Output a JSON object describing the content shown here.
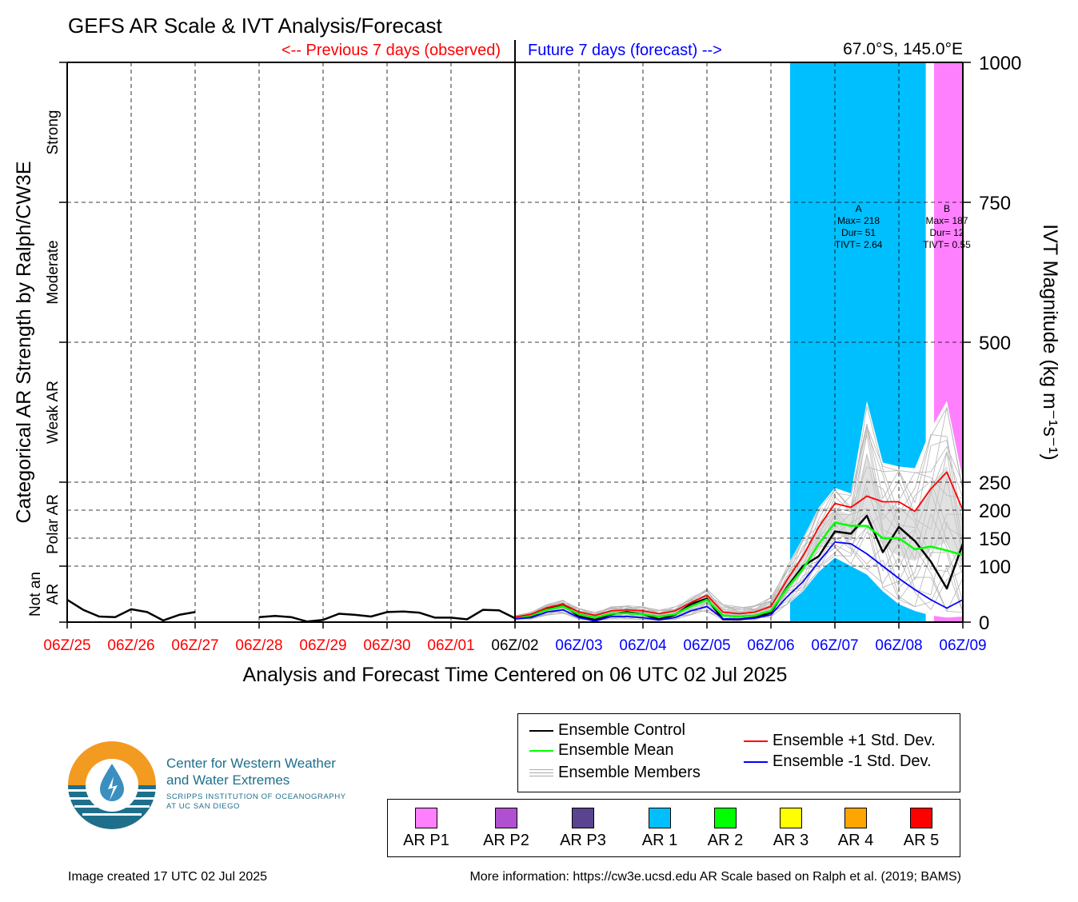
{
  "title": "GEFS AR Scale & IVT Analysis/Forecast",
  "header": {
    "previous": "<-- Previous 7 days (observed)",
    "future": "Future 7 days (forecast) -->",
    "location": "67.0°S, 145.0°E"
  },
  "xlabel": "Analysis and Forecast Time Centered on 06 UTC 02 Jul 2025",
  "left_axis_label": "Categorical AR Strength by Ralph/CW3E",
  "right_axis_label": "IVT Magnitude (kg m⁻¹s⁻¹)",
  "colors": {
    "observed": "#ff0000",
    "forecast": "#0000ff",
    "ar1": "#00bfff",
    "arp1": "#ff80ff",
    "control": "#000000",
    "mean": "#00ff00",
    "plus_std": "#ff0000",
    "minus_std": "#0000ff",
    "members": "#aaaaaa",
    "spread": "#d3d3d3"
  },
  "chart_data": {
    "type": "line",
    "xlim": [
      0,
      14
    ],
    "ylim": [
      0,
      1000
    ],
    "x_ticks": [
      {
        "x": 0,
        "label": "06Z/25",
        "kind": "observed"
      },
      {
        "x": 1,
        "label": "06Z/26",
        "kind": "observed"
      },
      {
        "x": 2,
        "label": "06Z/27",
        "kind": "observed"
      },
      {
        "x": 3,
        "label": "06Z/28",
        "kind": "observed"
      },
      {
        "x": 4,
        "label": "06Z/29",
        "kind": "observed"
      },
      {
        "x": 5,
        "label": "06Z/30",
        "kind": "observed"
      },
      {
        "x": 6,
        "label": "06Z/01",
        "kind": "observed"
      },
      {
        "x": 7,
        "label": "06Z/02",
        "kind": "now"
      },
      {
        "x": 8,
        "label": "06Z/03",
        "kind": "forecast"
      },
      {
        "x": 9,
        "label": "06Z/04",
        "kind": "forecast"
      },
      {
        "x": 10,
        "label": "06Z/05",
        "kind": "forecast"
      },
      {
        "x": 11,
        "label": "06Z/06",
        "kind": "forecast"
      },
      {
        "x": 12,
        "label": "06Z/07",
        "kind": "forecast"
      },
      {
        "x": 13,
        "label": "06Z/08",
        "kind": "forecast"
      },
      {
        "x": 14,
        "label": "06Z/09",
        "kind": "forecast"
      }
    ],
    "y_ticks": [
      {
        "value": 0,
        "label": "0"
      },
      {
        "value": 100,
        "label": "100"
      },
      {
        "value": 150,
        "label": "150"
      },
      {
        "value": 200,
        "label": "200"
      },
      {
        "value": 250,
        "label": "250"
      },
      {
        "value": 500,
        "label": "500"
      },
      {
        "value": 750,
        "label": "750"
      },
      {
        "value": 1000,
        "label": "1000"
      }
    ],
    "categories": [
      {
        "name": "Not an AR",
        "lines": [
          "Not an",
          "AR"
        ],
        "y_from": 0,
        "y_to": 100
      },
      {
        "name": "Polar AR",
        "lines": [
          "Polar AR"
        ],
        "y_from": 100,
        "y_to": 250
      },
      {
        "name": "Weak AR",
        "lines": [
          "Weak AR"
        ],
        "y_from": 250,
        "y_to": 500
      },
      {
        "name": "Moderate",
        "lines": [
          "Moderate"
        ],
        "y_from": 500,
        "y_to": 750
      },
      {
        "name": "Strong",
        "lines": [
          "Strong"
        ],
        "y_from": 750,
        "y_to": 1000
      }
    ],
    "ar_periods": [
      {
        "label": "A",
        "x_start": 11.3,
        "x_end": 13.42,
        "color": "#00bfff",
        "text": [
          "A",
          "Max= 218",
          "Dur= 51",
          "TIVT= 2.64"
        ]
      },
      {
        "label": "B",
        "x_start": 13.55,
        "x_end": 14.0,
        "color": "#ff80ff",
        "text": [
          "B",
          "Max= 187",
          "Dur= 12",
          "TIVT= 0.55"
        ]
      }
    ],
    "series": [
      {
        "name": "Ensemble Control",
        "color": "#000000",
        "width": 2.5,
        "segments": [
          [
            [
              0,
              40
            ],
            [
              0.25,
              22
            ],
            [
              0.5,
              10
            ],
            [
              0.75,
              9
            ],
            [
              1.0,
              23
            ],
            [
              1.25,
              18
            ],
            [
              1.5,
              3
            ],
            [
              1.75,
              13
            ],
            [
              2.0,
              18
            ]
          ],
          [
            [
              3.0,
              9
            ],
            [
              3.25,
              11
            ],
            [
              3.5,
              9
            ],
            [
              3.75,
              1
            ],
            [
              4.0,
              4
            ],
            [
              4.25,
              15
            ],
            [
              4.5,
              13
            ],
            [
              4.75,
              10
            ],
            [
              5.0,
              18
            ],
            [
              5.25,
              19
            ],
            [
              5.5,
              17
            ],
            [
              5.75,
              8
            ],
            [
              6.0,
              8
            ],
            [
              6.25,
              5
            ],
            [
              6.5,
              22
            ],
            [
              6.75,
              21
            ],
            [
              7.0,
              7
            ]
          ],
          [
            [
              7.0,
              7
            ],
            [
              7.25,
              10
            ],
            [
              7.5,
              24
            ],
            [
              7.75,
              32
            ],
            [
              8.0,
              10
            ],
            [
              8.25,
              4
            ],
            [
              8.5,
              14
            ],
            [
              8.75,
              18
            ],
            [
              9.0,
              14
            ],
            [
              9.25,
              5
            ],
            [
              9.5,
              13
            ],
            [
              9.75,
              32
            ],
            [
              10.0,
              42
            ],
            [
              10.25,
              5
            ],
            [
              10.5,
              5
            ],
            [
              10.75,
              8
            ],
            [
              11.0,
              17
            ],
            [
              11.25,
              62
            ],
            [
              11.5,
              100
            ],
            [
              11.75,
              118
            ],
            [
              12.0,
              162
            ],
            [
              12.25,
              158
            ],
            [
              12.5,
              190
            ],
            [
              12.75,
              125
            ],
            [
              13.0,
              170
            ],
            [
              13.25,
              145
            ],
            [
              13.5,
              108
            ],
            [
              13.75,
              60
            ],
            [
              14.0,
              140
            ]
          ]
        ]
      },
      {
        "name": "Ensemble Mean",
        "color": "#00ff00",
        "width": 2.5,
        "segments": [
          [
            [
              7.0,
              8
            ],
            [
              7.25,
              12
            ],
            [
              7.5,
              22
            ],
            [
              7.75,
              28
            ],
            [
              8.0,
              14
            ],
            [
              8.25,
              8
            ],
            [
              8.5,
              15
            ],
            [
              8.75,
              16
            ],
            [
              9.0,
              14
            ],
            [
              9.25,
              10
            ],
            [
              9.5,
              14
            ],
            [
              9.75,
              28
            ],
            [
              10.0,
              40
            ],
            [
              10.25,
              12
            ],
            [
              10.5,
              10
            ],
            [
              10.75,
              12
            ],
            [
              11.0,
              20
            ],
            [
              11.25,
              60
            ],
            [
              11.5,
              95
            ],
            [
              11.75,
              140
            ],
            [
              12.0,
              178
            ],
            [
              12.25,
              172
            ],
            [
              12.5,
              172
            ],
            [
              12.75,
              150
            ],
            [
              13.0,
              150
            ],
            [
              13.25,
              130
            ],
            [
              13.5,
              135
            ],
            [
              13.75,
              128
            ],
            [
              14.0,
              120
            ]
          ]
        ]
      },
      {
        "name": "Ensemble +1 Std. Dev.",
        "color": "#ff0000",
        "width": 1.8,
        "segments": [
          [
            [
              7.0,
              9
            ],
            [
              7.25,
              14
            ],
            [
              7.5,
              26
            ],
            [
              7.75,
              32
            ],
            [
              8.0,
              18
            ],
            [
              8.25,
              12
            ],
            [
              8.5,
              20
            ],
            [
              8.75,
              22
            ],
            [
              9.0,
              20
            ],
            [
              9.25,
              15
            ],
            [
              9.5,
              20
            ],
            [
              9.75,
              35
            ],
            [
              10.0,
              48
            ],
            [
              10.25,
              18
            ],
            [
              10.5,
              15
            ],
            [
              10.75,
              18
            ],
            [
              11.0,
              28
            ],
            [
              11.25,
              75
            ],
            [
              11.5,
              118
            ],
            [
              11.75,
              170
            ],
            [
              12.0,
              212
            ],
            [
              12.25,
              205
            ],
            [
              12.5,
              225
            ],
            [
              12.75,
              215
            ],
            [
              13.0,
              215
            ],
            [
              13.25,
              198
            ],
            [
              13.5,
              238
            ],
            [
              13.75,
              268
            ],
            [
              14.0,
              200
            ]
          ]
        ]
      },
      {
        "name": "Ensemble -1 Std. Dev.",
        "color": "#0000ff",
        "width": 1.8,
        "segments": [
          [
            [
              7.0,
              6
            ],
            [
              7.25,
              8
            ],
            [
              7.5,
              18
            ],
            [
              7.75,
              22
            ],
            [
              8.0,
              8
            ],
            [
              8.25,
              2
            ],
            [
              8.5,
              10
            ],
            [
              8.75,
              10
            ],
            [
              9.0,
              8
            ],
            [
              9.25,
              4
            ],
            [
              9.5,
              8
            ],
            [
              9.75,
              20
            ],
            [
              10.0,
              28
            ],
            [
              10.25,
              6
            ],
            [
              10.5,
              5
            ],
            [
              10.75,
              7
            ],
            [
              11.0,
              13
            ],
            [
              11.25,
              45
            ],
            [
              11.5,
              72
            ],
            [
              11.75,
              108
            ],
            [
              12.0,
              143
            ],
            [
              12.25,
              140
            ],
            [
              12.5,
              122
            ],
            [
              12.75,
              100
            ],
            [
              13.0,
              78
            ],
            [
              13.25,
              58
            ],
            [
              13.5,
              40
            ],
            [
              13.75,
              25
            ],
            [
              14.0,
              40
            ]
          ]
        ]
      }
    ],
    "spread": {
      "name": "Ensemble Members",
      "x": [
        7.0,
        7.25,
        7.5,
        7.75,
        8.0,
        8.25,
        8.5,
        8.75,
        9.0,
        9.25,
        9.5,
        9.75,
        10.0,
        10.25,
        10.5,
        10.75,
        11.0,
        11.25,
        11.5,
        11.75,
        12.0,
        12.25,
        12.5,
        12.75,
        13.0,
        13.25,
        13.5,
        13.75,
        14.0
      ],
      "upper": [
        12,
        18,
        32,
        40,
        25,
        18,
        28,
        30,
        28,
        22,
        28,
        45,
        60,
        32,
        28,
        30,
        45,
        100,
        150,
        205,
        240,
        230,
        395,
        285,
        278,
        275,
        345,
        395,
        255
      ],
      "lower": [
        4,
        5,
        12,
        15,
        4,
        1,
        5,
        5,
        4,
        2,
        4,
        12,
        18,
        3,
        2,
        3,
        8,
        30,
        55,
        90,
        115,
        100,
        85,
        55,
        32,
        20,
        12,
        8,
        10
      ],
      "member_count": 20
    },
    "legend_columns": [
      [
        "Ensemble Control",
        "Ensemble Mean",
        "Ensemble Members"
      ],
      [
        "Ensemble +1 Std. Dev.",
        "Ensemble -1 Std. Dev."
      ]
    ]
  },
  "scale_legend": [
    {
      "label": "AR P1",
      "color": "#ff80ff"
    },
    {
      "label": "AR P2",
      "color": "#b050d0"
    },
    {
      "label": "AR P3",
      "color": "#5a4490"
    },
    {
      "label": "AR 1",
      "color": "#00bfff"
    },
    {
      "label": "AR 2",
      "color": "#00ff00"
    },
    {
      "label": "AR 3",
      "color": "#ffff00"
    },
    {
      "label": "AR 4",
      "color": "#ffa500"
    },
    {
      "label": "AR 5",
      "color": "#ff0000"
    }
  ],
  "logo": {
    "line1": "Center for Western Weather",
    "line2": "and Water Extremes",
    "line3": "SCRIPPS INSTITUTION OF OCEANOGRAPHY",
    "line4": "AT UC SAN DIEGO"
  },
  "footer": {
    "created": "Image created 17 UTC 02 Jul 2025",
    "info": "More information: https://cw3e.ucsd.edu AR Scale based on Ralph et al. (2019; BAMS)"
  }
}
